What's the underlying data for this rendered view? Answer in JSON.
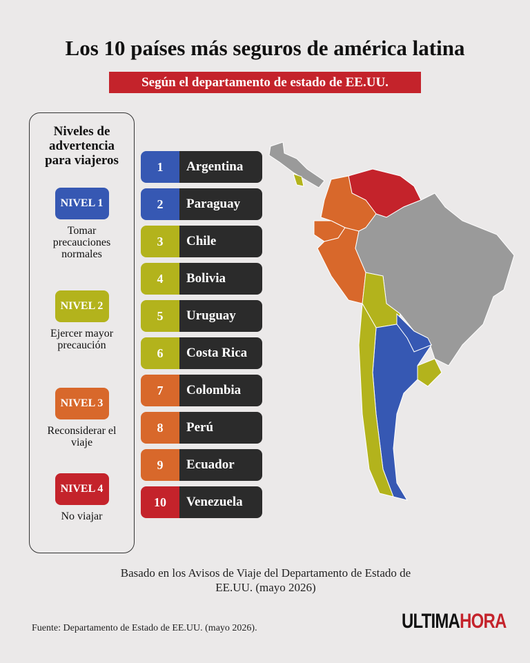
{
  "header": {
    "title": "Los 10 países más seguros de américa latina",
    "subtitle": "Según el departamento de estado de EE.UU."
  },
  "legend": {
    "title": "Niveles de advertencia para viajeros",
    "levels": [
      {
        "label": "NIVEL 1",
        "description": "Tomar precauciones normales",
        "color": "#3658b3"
      },
      {
        "label": "NIVEL 2",
        "description": "Ejercer mayor precaución",
        "color": "#b3b31c"
      },
      {
        "label": "NIVEL 3",
        "description": "Reconsiderar el viaje",
        "color": "#d8682b"
      },
      {
        "label": "NIVEL 4",
        "description": "No viajar",
        "color": "#c4232b"
      }
    ]
  },
  "ranking": [
    {
      "rank": 1,
      "country": "Argentina",
      "color": "#3658b3"
    },
    {
      "rank": 2,
      "country": "Paraguay",
      "color": "#3658b3"
    },
    {
      "rank": 3,
      "country": "Chile",
      "color": "#b3b31c"
    },
    {
      "rank": 4,
      "country": "Bolivia",
      "color": "#b3b31c"
    },
    {
      "rank": 5,
      "country": "Uruguay",
      "color": "#b3b31c"
    },
    {
      "rank": 6,
      "country": "Costa Rica",
      "color": "#b3b31c"
    },
    {
      "rank": 7,
      "country": "Colombia",
      "color": "#d8682b"
    },
    {
      "rank": 8,
      "country": "Perú",
      "color": "#d8682b"
    },
    {
      "rank": 9,
      "country": "Ecuador",
      "color": "#d8682b"
    },
    {
      "rank": 10,
      "country": "Venezuela",
      "color": "#c4232b"
    }
  ],
  "note": "Basado en los Avisos de Viaje del Departamento de Estado de EE.UU. (mayo 2026)",
  "source": "Fuente: Departamento de Estado de EE.UU. (mayo 2026).",
  "brand": {
    "first": "ULTIMA",
    "second": "HORA"
  }
}
